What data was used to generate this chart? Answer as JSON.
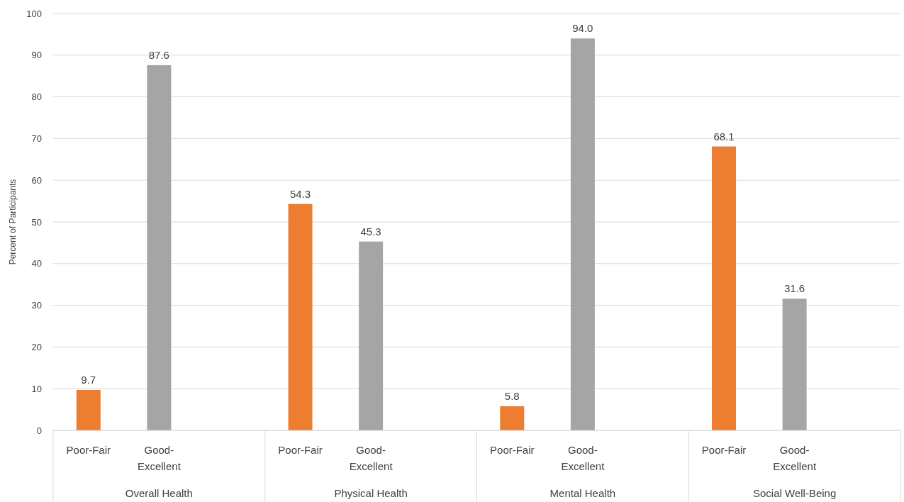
{
  "chart_data": {
    "type": "bar",
    "ylabel": "Percent of Participants",
    "categories": [
      "Overall Health",
      "Physical Health",
      "Mental Health",
      "Social Well-Being"
    ],
    "series": [
      {
        "name": "Poor-Fair",
        "color": "#ed7d31",
        "values": [
          9.7,
          54.3,
          5.8,
          68.1
        ]
      },
      {
        "name": "Good-Excellent",
        "color": "#a5a5a5",
        "values": [
          87.6,
          45.3,
          94.0,
          31.6
        ]
      }
    ],
    "value_labels": [
      [
        "9.7",
        "54.3",
        "5.8",
        "68.1"
      ],
      [
        "87.6",
        "45.3",
        "94.0",
        "31.6"
      ]
    ],
    "ylim": [
      0,
      100
    ],
    "yticks": [
      0,
      10,
      20,
      30,
      40,
      50,
      60,
      70,
      80,
      90,
      100
    ],
    "grid": "y"
  }
}
